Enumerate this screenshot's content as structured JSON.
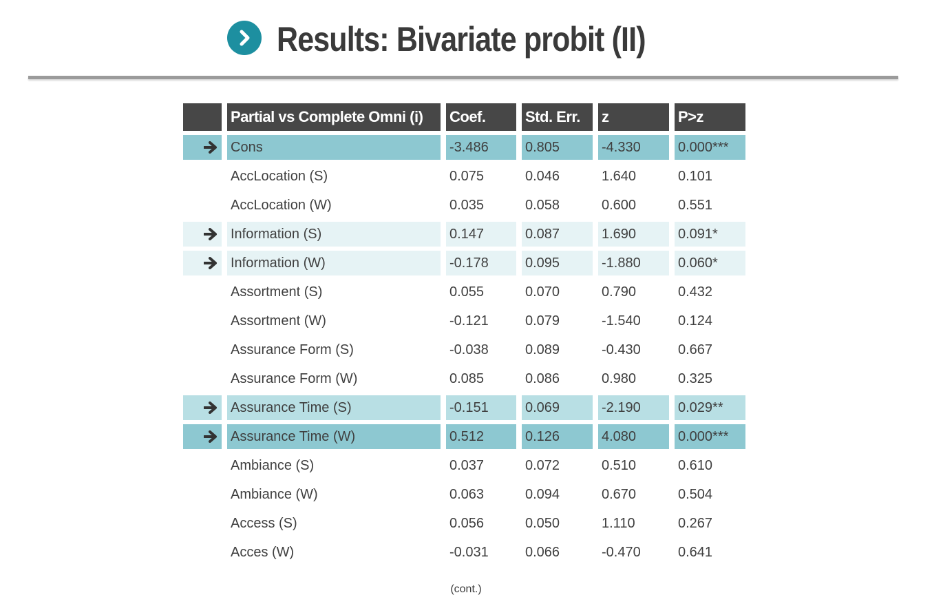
{
  "title": "Results: Bivariate probit (II)",
  "colors": {
    "accent": "#1d8fa0",
    "header_bg": "#474747",
    "highlight_strong": "#8dc8d1",
    "highlight_mid": "#b8dfe4",
    "highlight_light": "#e6f3f5",
    "rule": "#9b9b9b"
  },
  "icons": {
    "title": "chevron-right-circle-icon",
    "row_marker": "arrow-right-icon"
  },
  "table": {
    "headers": [
      "",
      "Partial vs Complete Omni (i)",
      "Coef.",
      "Std. Err.",
      "z",
      "P>z"
    ],
    "rows": [
      {
        "variable": "Cons",
        "coef": "-3.486",
        "se": "0.805",
        "z": "-4.330",
        "p": "0.000***",
        "arrow": true,
        "highlight": "strong"
      },
      {
        "variable": "AccLocation (S)",
        "coef": "0.075",
        "se": "0.046",
        "z": "1.640",
        "p": "0.101",
        "arrow": false,
        "highlight": "none"
      },
      {
        "variable": "AccLocation (W)",
        "coef": "0.035",
        "se": "0.058",
        "z": "0.600",
        "p": "0.551",
        "arrow": false,
        "highlight": "none"
      },
      {
        "variable": "Information (S)",
        "coef": "0.147",
        "se": "0.087",
        "z": "1.690",
        "p": "0.091*",
        "arrow": true,
        "highlight": "light"
      },
      {
        "variable": "Information (W)",
        "coef": "-0.178",
        "se": "0.095",
        "z": "-1.880",
        "p": "0.060*",
        "arrow": true,
        "highlight": "light"
      },
      {
        "variable": "Assortment (S)",
        "coef": "0.055",
        "se": "0.070",
        "z": "0.790",
        "p": "0.432",
        "arrow": false,
        "highlight": "none"
      },
      {
        "variable": "Assortment (W)",
        "coef": "-0.121",
        "se": "0.079",
        "z": "-1.540",
        "p": "0.124",
        "arrow": false,
        "highlight": "none"
      },
      {
        "variable": "Assurance Form (S)",
        "coef": "-0.038",
        "se": "0.089",
        "z": "-0.430",
        "p": "0.667",
        "arrow": false,
        "highlight": "none"
      },
      {
        "variable": "Assurance Form (W)",
        "coef": "0.085",
        "se": "0.086",
        "z": "0.980",
        "p": "0.325",
        "arrow": false,
        "highlight": "none"
      },
      {
        "variable": "Assurance Time (S)",
        "coef": "-0.151",
        "se": "0.069",
        "z": "-2.190",
        "p": "0.029**",
        "arrow": true,
        "highlight": "mid"
      },
      {
        "variable": "Assurance Time (W)",
        "coef": "0.512",
        "se": "0.126",
        "z": "4.080",
        "p": "0.000***",
        "arrow": true,
        "highlight": "strong"
      },
      {
        "variable": "Ambiance (S)",
        "coef": "0.037",
        "se": "0.072",
        "z": "0.510",
        "p": "0.610",
        "arrow": false,
        "highlight": "none"
      },
      {
        "variable": "Ambiance (W)",
        "coef": "0.063",
        "se": "0.094",
        "z": "0.670",
        "p": "0.504",
        "arrow": false,
        "highlight": "none"
      },
      {
        "variable": "Access (S)",
        "coef": "0.056",
        "se": "0.050",
        "z": "1.110",
        "p": "0.267",
        "arrow": false,
        "highlight": "none"
      },
      {
        "variable": "Acces (W)",
        "coef": "-0.031",
        "se": "0.066",
        "z": "-0.470",
        "p": "0.641",
        "arrow": false,
        "highlight": "none"
      }
    ]
  },
  "footer_note": "(cont.)"
}
